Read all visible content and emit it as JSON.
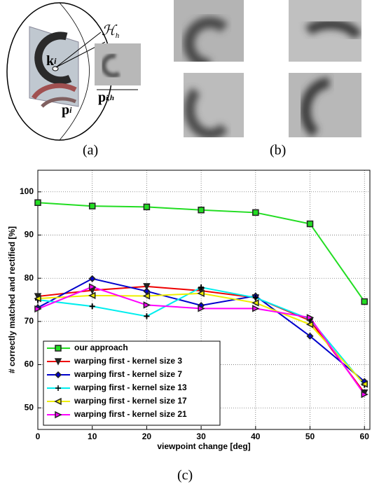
{
  "figure": {
    "panel_labels": [
      "(a)",
      "(b)",
      "(c)"
    ],
    "symbols": {
      "hypothesis": "ℋ",
      "hypothesis_sub": "h",
      "keypoint": "k",
      "keypoint_sub": "i",
      "patch": "p",
      "patch_sub": "i",
      "rectified": "p",
      "rectified_sub": "i,h"
    }
  },
  "chart_data": {
    "type": "line",
    "x_label": "viewpoint change [deg]",
    "y_label": "# correctly matched and rectified [%]",
    "x": [
      0,
      10,
      20,
      30,
      40,
      50,
      60
    ],
    "xlim": [
      0,
      61
    ],
    "xticks": [
      0,
      10,
      20,
      30,
      40,
      50,
      60
    ],
    "ylim": [
      45,
      105
    ],
    "yticks": [
      50,
      60,
      70,
      80,
      90,
      100
    ],
    "grid": true,
    "legend": "lower left",
    "series": [
      {
        "name": "our approach",
        "color": "#22dd22",
        "marker": "square",
        "values": [
          97.5,
          96.7,
          96.5,
          95.8,
          95.2,
          92.6,
          74.6
        ]
      },
      {
        "name": "warping first - kernel size 3",
        "color": "#ee0000",
        "marker": "triangle-down",
        "values": [
          75.8,
          77.2,
          78.1,
          77.1,
          75.5,
          70.2,
          53.5
        ]
      },
      {
        "name": "warping first - kernel size 7",
        "color": "#0000cc",
        "marker": "diamond",
        "values": [
          73.2,
          79.9,
          77.0,
          73.7,
          75.9,
          66.6,
          56.1
        ]
      },
      {
        "name": "warping first - kernel size 13",
        "color": "#00eeee",
        "marker": "plus",
        "values": [
          75.0,
          73.5,
          71.2,
          77.9,
          75.5,
          70.5,
          55.3
        ]
      },
      {
        "name": "warping first - kernel size 17",
        "color": "#eeee00",
        "marker": "triangle-left",
        "values": [
          75.3,
          76.0,
          75.9,
          76.5,
          74.3,
          69.3,
          55.5
        ]
      },
      {
        "name": "warping first - kernel size 21",
        "color": "#ff00ff",
        "marker": "triangle-right",
        "values": [
          72.9,
          78.0,
          73.8,
          73.0,
          73.0,
          70.9,
          53.1
        ]
      }
    ]
  }
}
